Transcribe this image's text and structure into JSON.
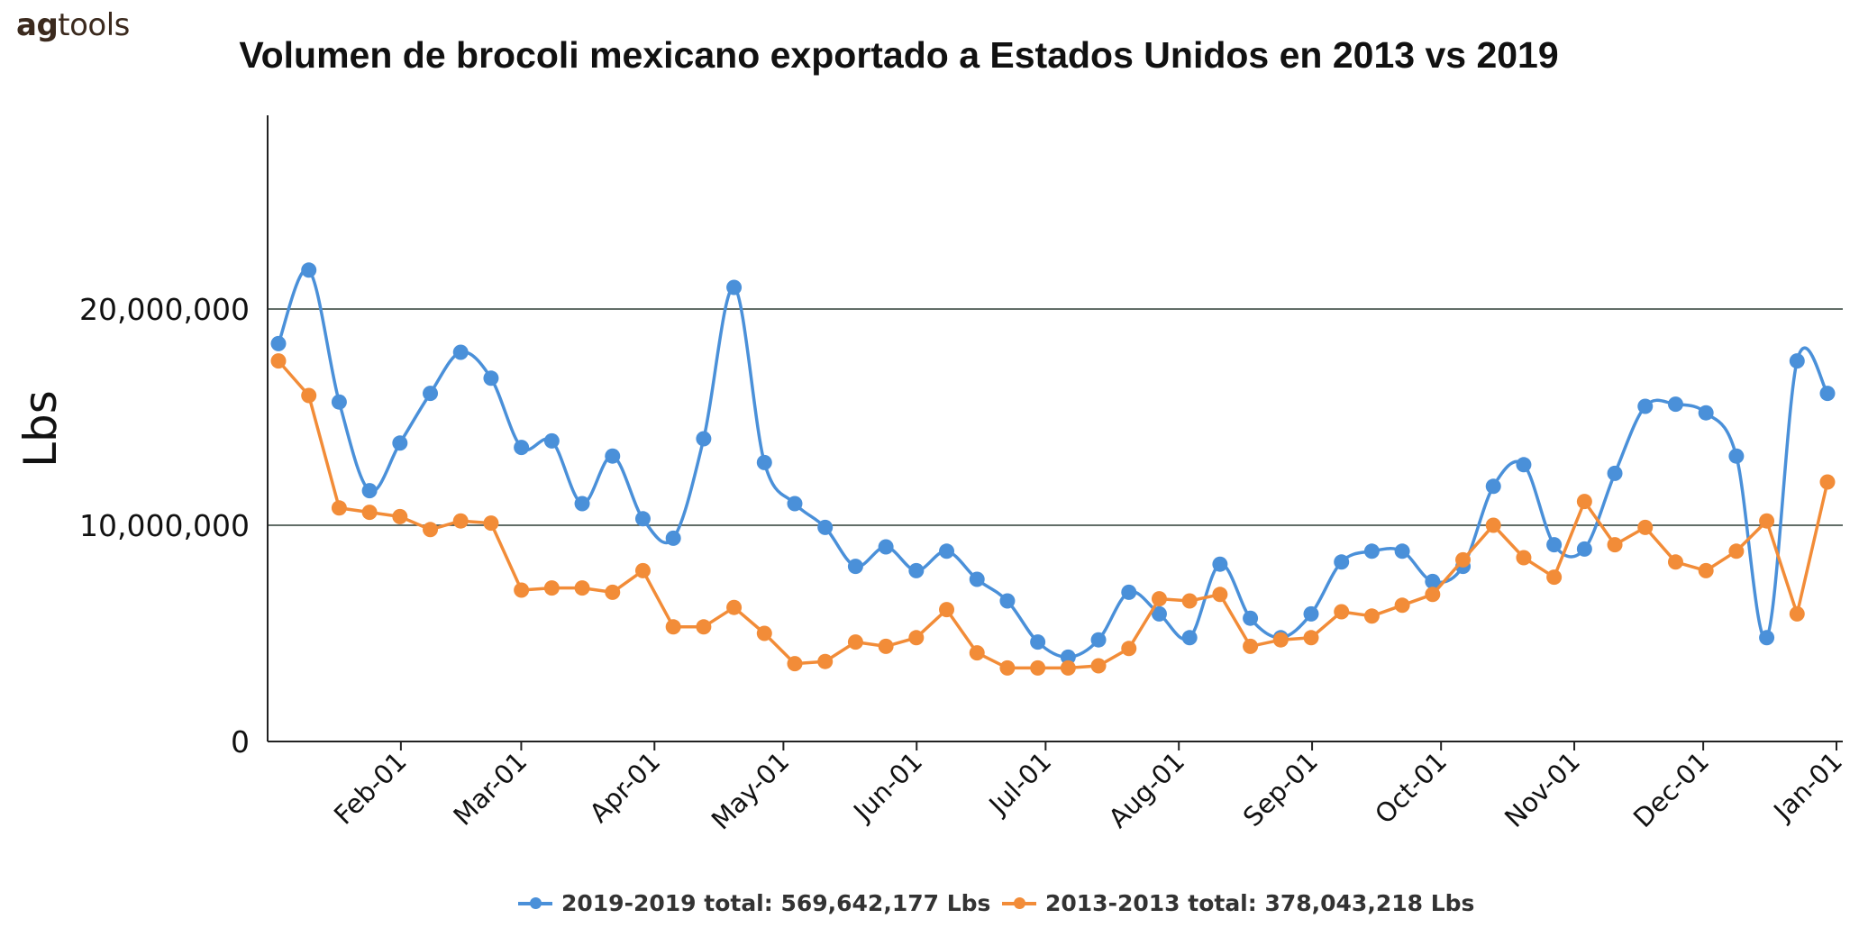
{
  "brand": {
    "bold": "ag",
    "rest": "tools"
  },
  "chart_data": {
    "type": "line",
    "title": "Volumen de brocoli mexicano exportado a Estados Unidos en 2013 vs 2019",
    "xlabel": "",
    "ylabel": "Lbs",
    "ylim": [
      0,
      28000000
    ],
    "yticks": [
      0,
      10000000,
      20000000
    ],
    "ytick_labels": [
      "0",
      "10,000,000",
      "20,000,000"
    ],
    "xlim": [
      "Jan-01",
      "Jan-01 (next year)"
    ],
    "xtick_labels": [
      "Feb-01",
      "Mar-01",
      "Apr-01",
      "May-01",
      "Jun-01",
      "Jul-01",
      "Aug-01",
      "Sep-01",
      "Oct-01",
      "Nov-01",
      "Dec-01",
      "Jan-01"
    ],
    "grid": "horizontal at major ticks",
    "legend_position": "bottom",
    "series": [
      {
        "name": "2019-2019 total: 569,642,177 Lbs",
        "color": "#4a90d9",
        "values": [
          18400000,
          21800000,
          15700000,
          11600000,
          13800000,
          16100000,
          18000000,
          16800000,
          13600000,
          13900000,
          11000000,
          13200000,
          10300000,
          9400000,
          14000000,
          21000000,
          12900000,
          11000000,
          9900000,
          8100000,
          9000000,
          7900000,
          8800000,
          7500000,
          6500000,
          4600000,
          3900000,
          4700000,
          6900000,
          5900000,
          4800000,
          8200000,
          5700000,
          4800000,
          5900000,
          8300000,
          8800000,
          8800000,
          7400000,
          8100000,
          11800000,
          12800000,
          9100000,
          8900000,
          12400000,
          15500000,
          15600000,
          15200000,
          13200000,
          4800000,
          17600000,
          16100000
        ]
      },
      {
        "name": "2013-2013 total: 378,043,218 Lbs",
        "color": "#f28c38",
        "values": [
          17600000,
          16000000,
          10800000,
          10600000,
          10400000,
          9800000,
          10200000,
          10100000,
          7000000,
          7100000,
          7100000,
          6900000,
          7900000,
          5300000,
          5300000,
          6200000,
          5000000,
          3600000,
          3700000,
          4600000,
          4400000,
          4800000,
          6100000,
          4100000,
          3400000,
          3400000,
          3400000,
          3500000,
          4300000,
          6600000,
          6500000,
          6800000,
          4400000,
          4700000,
          4800000,
          6000000,
          5800000,
          6300000,
          6800000,
          8400000,
          10000000,
          8500000,
          7600000,
          11100000,
          9100000,
          9900000,
          8300000,
          7900000,
          8800000,
          10200000,
          5900000,
          12000000
        ]
      }
    ]
  }
}
